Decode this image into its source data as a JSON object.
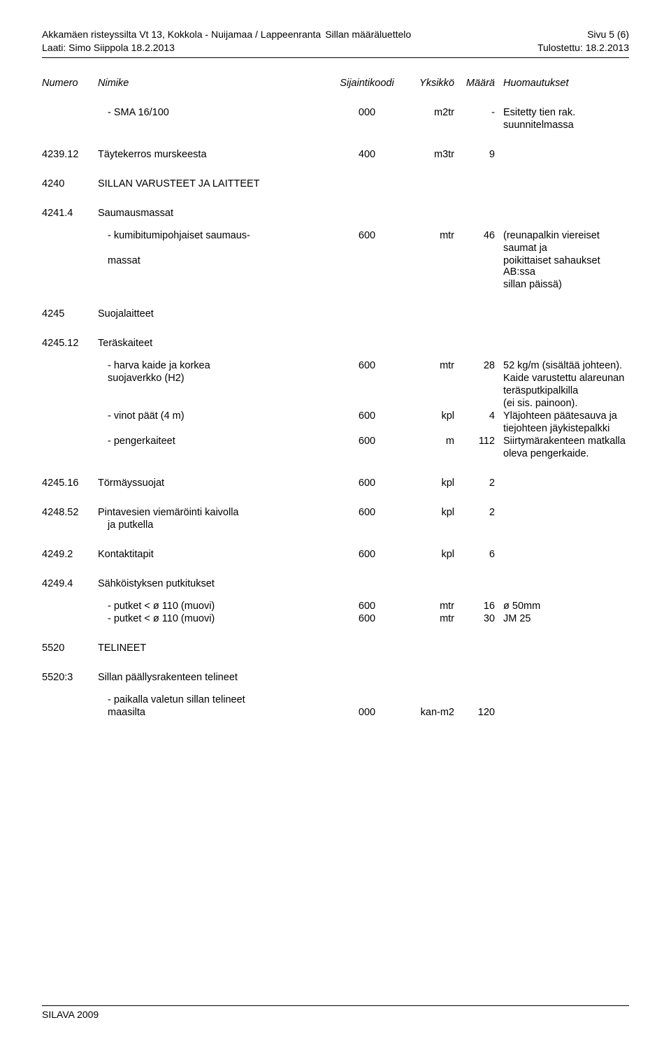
{
  "header": {
    "title_left": "Akkamäen risteyssilta  Vt 13, Kokkola - Nuijamaa  /   Lappeenranta",
    "title_mid": "Sillan määräluettelo",
    "page_label": "Sivu 5 (6)",
    "author_line": "Laati: Simo Siippola 18.2.2013",
    "print_line": "Tulostettu: 18.2.2013"
  },
  "columns": {
    "num": "Numero",
    "desc": "Nimike",
    "code": "Sijaintikoodi",
    "unit": "Yksikkö",
    "qty": "Määrä",
    "note": "Huomautukset"
  },
  "rows": [
    {
      "desc": "- SMA 16/100",
      "code": "000",
      "unit": "m2tr",
      "qty": "-",
      "note": "Esitetty tien rak."
    },
    {
      "note": "suunnitelmassa"
    },
    {
      "gap": "section"
    },
    {
      "num": "4239.12",
      "desc": "Täytekerros murskeesta",
      "code": "400",
      "unit": "m3tr",
      "qty": "9"
    },
    {
      "gap": "section"
    },
    {
      "num": "4240",
      "desc": "SILLAN VARUSTEET JA LAITTEET"
    },
    {
      "gap": "section"
    },
    {
      "num": "4241.4",
      "desc": "Saumausmassat"
    },
    {
      "gap": "med"
    },
    {
      "desc": "- kumibitumipohjaiset saumaus-",
      "code": "600",
      "unit": "mtr",
      "qty": "46",
      "note": "(reunapalkin viereiset"
    },
    {
      "note": "saumat ja"
    },
    {
      "desc": "  massat",
      "indent": "indent1",
      "note": "poikittaiset sahaukset AB:ssa"
    },
    {
      "note": "sillan päissä)"
    },
    {
      "gap": "section"
    },
    {
      "num": "4245",
      "desc": "Suojalaitteet"
    },
    {
      "gap": "section"
    },
    {
      "num": "4245.12",
      "desc": "Teräskaiteet"
    },
    {
      "gap": "med"
    },
    {
      "desc": "- harva kaide ja korkea",
      "code": "600",
      "unit": "mtr",
      "qty": "28",
      "note": "52 kg/m (sisältää johteen)."
    },
    {
      "desc": "  suojaverkko (H2)",
      "indent": "indent1",
      "note": "Kaide varustettu alareunan"
    },
    {
      "note": "teräsputkipalkilla"
    },
    {
      "note": "(ei sis. painoon)."
    },
    {
      "desc": "- vinot päät (4 m)",
      "code": "600",
      "unit": "kpl",
      "qty": "4",
      "note": "Yläjohteen päätesauva ja"
    },
    {
      "note": "tiejohteen jäykistepalkki"
    },
    {
      "desc": "- pengerkaiteet",
      "code": "600",
      "unit": "m",
      "qty": "112",
      "note": "Siirtymärakenteen matkalla"
    },
    {
      "note": "oleva pengerkaide."
    },
    {
      "gap": "section"
    },
    {
      "num": "4245.16",
      "desc": "Törmäyssuojat",
      "code": "600",
      "unit": "kpl",
      "qty": "2"
    },
    {
      "gap": "section"
    },
    {
      "num": "4248.52",
      "desc": "Pintavesien viemäröinti kaivolla",
      "code": "600",
      "unit": "kpl",
      "qty": "2"
    },
    {
      "desc": "ja putkella"
    },
    {
      "gap": "section"
    },
    {
      "num": "4249.2",
      "desc": "Kontaktitapit",
      "code": "600",
      "unit": "kpl",
      "qty": "6"
    },
    {
      "gap": "section"
    },
    {
      "num": "4249.4",
      "desc": "Sähköistyksen putkitukset"
    },
    {
      "gap": "med"
    },
    {
      "desc": "- putket < ø 110 (muovi)",
      "code": "600",
      "unit": "mtr",
      "qty": "16",
      "note": "ø 50mm"
    },
    {
      "desc": "- putket < ø 110 (muovi)",
      "code": "600",
      "unit": "mtr",
      "qty": "30",
      "note": "JM 25"
    },
    {
      "gap": "section"
    },
    {
      "num": "5520",
      "desc": "TELINEET"
    },
    {
      "gap": "section"
    },
    {
      "num": "5520:3",
      "desc": "Sillan päällysrakenteen telineet"
    },
    {
      "gap": "med"
    },
    {
      "desc": "- paikalla valetun sillan telineet"
    },
    {
      "desc": "  maasilta",
      "indent": "indent1",
      "code": "000",
      "unit": "kan-m2",
      "qty": "120"
    }
  ],
  "footer": "SILAVA 2009"
}
